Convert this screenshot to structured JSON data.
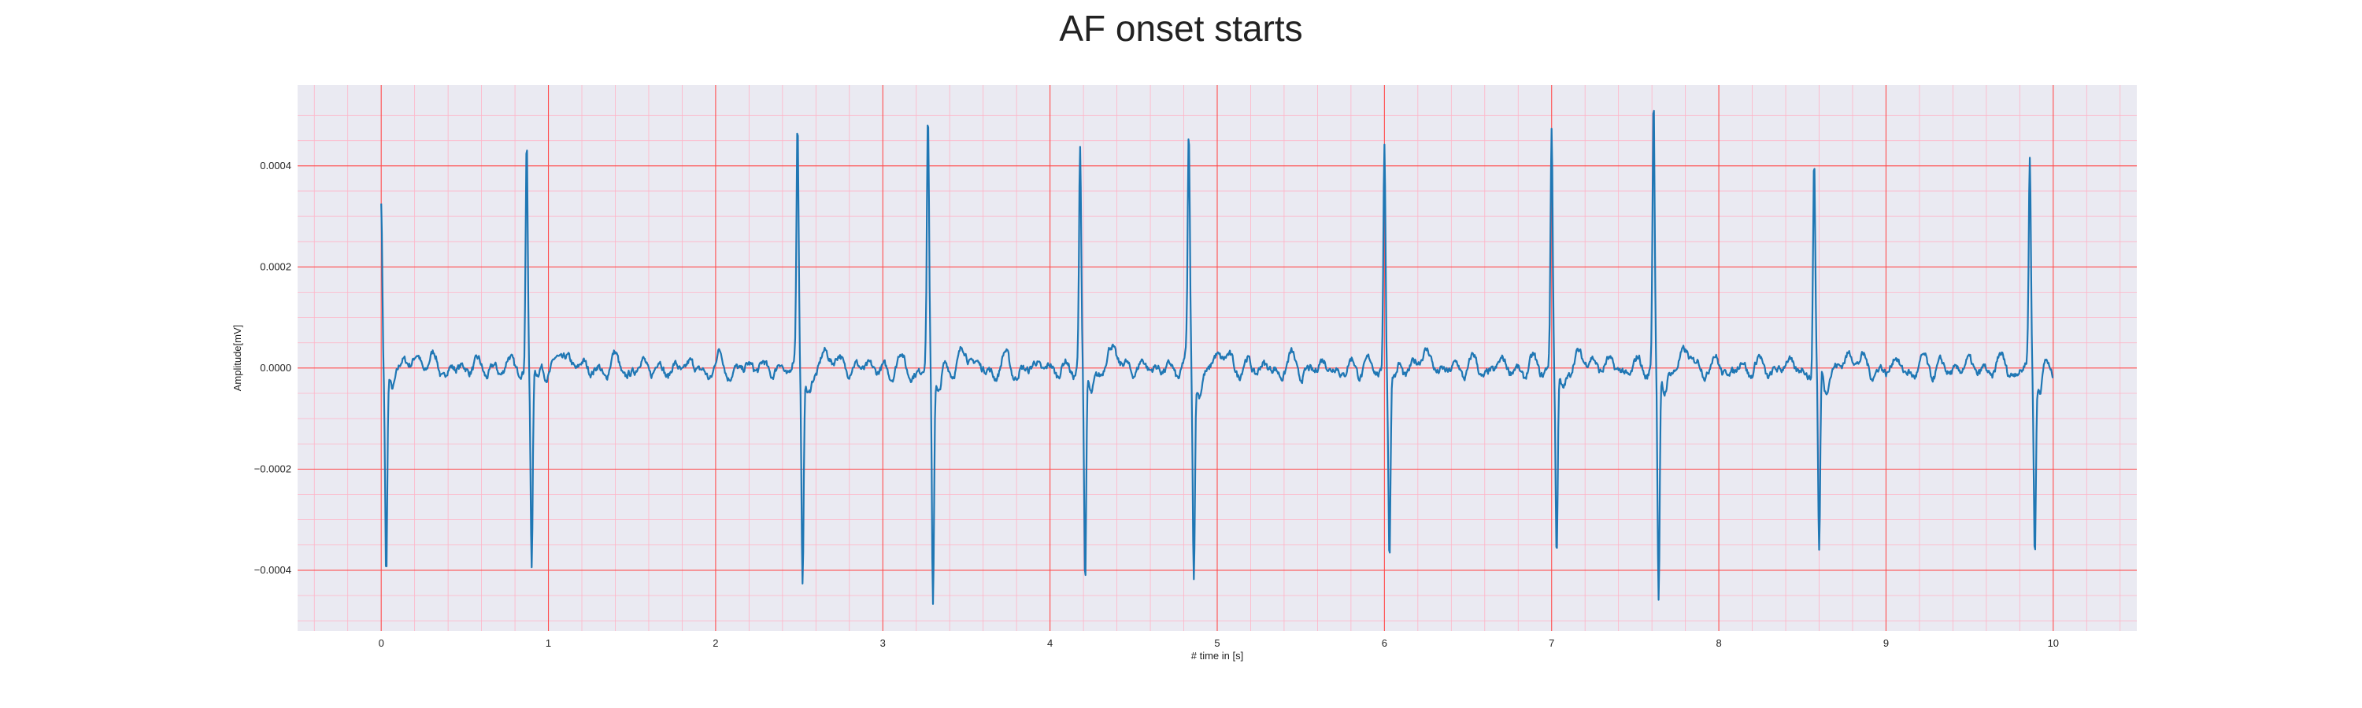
{
  "chart_data": {
    "type": "line",
    "title": "AF onset starts",
    "xlabel": "# time in [s]",
    "ylabel": "Amplitude[mV]",
    "xlim": [
      -0.5,
      10.5
    ],
    "ylim": [
      -0.00052,
      0.00056
    ],
    "xticks": [
      0,
      1,
      2,
      3,
      4,
      5,
      6,
      7,
      8,
      9,
      10
    ],
    "xtick_labels": [
      "0",
      "1",
      "2",
      "3",
      "4",
      "5",
      "6",
      "7",
      "8",
      "9",
      "10"
    ],
    "yticks": [
      -0.0004,
      -0.0002,
      0,
      0.0002,
      0.0004
    ],
    "ytick_labels": [
      "−0.0004",
      "−0.0002",
      "0.0000",
      "0.0002",
      "0.0004"
    ],
    "grid": true,
    "minor_grid": true,
    "colors": {
      "line": "#1f77b4",
      "plot_bg": "#eaeaf2",
      "major_grid": "#ff4d4d",
      "minor_grid": "#ffb3c6"
    },
    "series": [
      {
        "beats": [
          {
            "t": 0.0,
            "peak": 0.000345,
            "trough": -0.000405
          },
          {
            "t": 0.87,
            "peak": 0.000465,
            "trough": -0.00038
          },
          {
            "t": 2.49,
            "peak": 0.000465,
            "trough": -0.00043
          },
          {
            "t": 3.27,
            "peak": 0.000485,
            "trough": -0.00047
          },
          {
            "t": 4.18,
            "peak": 0.000415,
            "trough": -0.000435
          },
          {
            "t": 4.83,
            "peak": 0.00044,
            "trough": -0.000405
          },
          {
            "t": 6.0,
            "peak": 0.000455,
            "trough": -0.00037
          },
          {
            "t": 7.0,
            "peak": 0.00047,
            "trough": -0.000365
          },
          {
            "t": 7.61,
            "peak": 0.000515,
            "trough": -0.00046
          },
          {
            "t": 8.57,
            "peak": 0.000415,
            "trough": -0.00039
          },
          {
            "t": 9.86,
            "peak": 0.0004,
            "trough": -0.00036
          }
        ],
        "t_start": 0,
        "t_end": 10,
        "baseline_noise_amplitude": 3e-05
      }
    ]
  }
}
